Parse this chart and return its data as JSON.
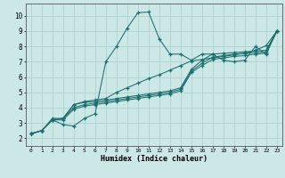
{
  "xlabel": "Humidex (Indice chaleur)",
  "background_color": "#cce8e6",
  "grid_color": "#aacfcc",
  "line_color": "#1a6e6e",
  "xlim": [
    -0.5,
    23.5
  ],
  "ylim": [
    1.5,
    10.8
  ],
  "xticks": [
    0,
    1,
    2,
    3,
    4,
    5,
    6,
    7,
    8,
    9,
    10,
    11,
    12,
    13,
    14,
    15,
    16,
    17,
    18,
    19,
    20,
    21,
    22,
    23
  ],
  "yticks": [
    2,
    3,
    4,
    5,
    6,
    7,
    8,
    9,
    10
  ],
  "line1_x": [
    0,
    1,
    2,
    3,
    4,
    5,
    6,
    7,
    8,
    9,
    10,
    11,
    12,
    13,
    14,
    15,
    16,
    17,
    18,
    19,
    20,
    21,
    22,
    23
  ],
  "line1_y": [
    2.3,
    2.5,
    3.2,
    2.9,
    2.8,
    3.3,
    3.6,
    7.0,
    8.0,
    9.2,
    10.2,
    10.25,
    8.5,
    7.5,
    7.5,
    7.1,
    7.5,
    7.5,
    7.1,
    7.0,
    7.1,
    8.0,
    7.5,
    9.0
  ],
  "line2_x": [
    0,
    1,
    2,
    3,
    4,
    5,
    6,
    7,
    8,
    9,
    10,
    11,
    12,
    13,
    14,
    15,
    16,
    17,
    18,
    19,
    20,
    21,
    22,
    23
  ],
  "line2_y": [
    2.3,
    2.5,
    3.2,
    3.3,
    4.2,
    4.4,
    4.5,
    4.6,
    5.0,
    5.3,
    5.6,
    5.9,
    6.15,
    6.45,
    6.75,
    7.05,
    7.15,
    7.25,
    7.35,
    7.45,
    7.55,
    7.75,
    8.05,
    9.0
  ],
  "line3_x": [
    0,
    1,
    2,
    3,
    4,
    5,
    6,
    7,
    8,
    9,
    10,
    11,
    12,
    13,
    14,
    15,
    16,
    17,
    18,
    19,
    20,
    21,
    22,
    23
  ],
  "line3_y": [
    2.3,
    2.5,
    3.3,
    3.3,
    4.2,
    4.35,
    4.4,
    4.5,
    4.6,
    4.7,
    4.8,
    4.9,
    5.0,
    5.1,
    5.3,
    6.5,
    7.1,
    7.5,
    7.55,
    7.6,
    7.65,
    7.7,
    7.75,
    9.0
  ],
  "line4_x": [
    0,
    1,
    2,
    3,
    4,
    5,
    6,
    7,
    8,
    9,
    10,
    11,
    12,
    13,
    14,
    15,
    16,
    17,
    18,
    19,
    20,
    21,
    22,
    23
  ],
  "line4_y": [
    2.3,
    2.5,
    3.2,
    3.3,
    4.0,
    4.2,
    4.3,
    4.4,
    4.5,
    4.6,
    4.7,
    4.8,
    4.9,
    5.0,
    5.2,
    6.4,
    6.9,
    7.3,
    7.4,
    7.5,
    7.55,
    7.6,
    7.65,
    9.0
  ],
  "line5_x": [
    0,
    1,
    2,
    3,
    4,
    5,
    6,
    7,
    8,
    9,
    10,
    11,
    12,
    13,
    14,
    15,
    16,
    17,
    18,
    19,
    20,
    21,
    22,
    23
  ],
  "line5_y": [
    2.3,
    2.5,
    3.2,
    3.2,
    3.9,
    4.1,
    4.2,
    4.3,
    4.4,
    4.5,
    4.6,
    4.7,
    4.8,
    4.9,
    5.1,
    6.3,
    6.75,
    7.15,
    7.25,
    7.35,
    7.4,
    7.5,
    7.55,
    9.0
  ]
}
